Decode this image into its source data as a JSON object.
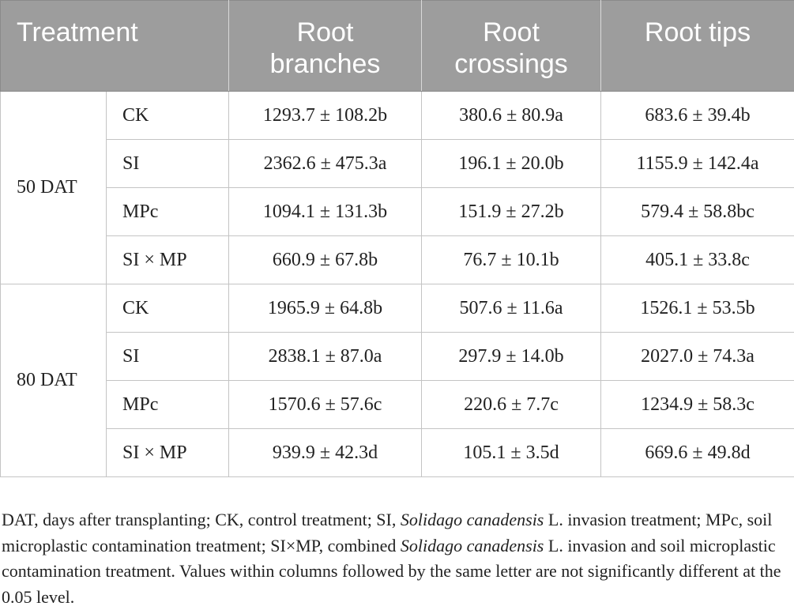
{
  "table": {
    "headers": {
      "treatment": "Treatment",
      "branches": [
        "Root",
        "branches"
      ],
      "crossings": [
        "Root",
        "crossings"
      ],
      "tips": [
        "Root tips"
      ]
    },
    "groups": [
      {
        "label": "50 DAT",
        "rows": [
          {
            "treatment": "CK",
            "branches": "1293.7 ± 108.2b",
            "crossings": "380.6 ± 80.9a",
            "tips": "683.6 ± 39.4b"
          },
          {
            "treatment": "SI",
            "branches": "2362.6 ± 475.3a",
            "crossings": "196.1 ± 20.0b",
            "tips": "1155.9 ± 142.4a"
          },
          {
            "treatment": "MPc",
            "branches": "1094.1 ± 131.3b",
            "crossings": "151.9 ± 27.2b",
            "tips": "579.4 ± 58.8bc"
          },
          {
            "treatment": "SI × MP",
            "branches": "660.9 ± 67.8b",
            "crossings": "76.7 ± 10.1b",
            "tips": "405.1 ± 33.8c"
          }
        ]
      },
      {
        "label": "80 DAT",
        "rows": [
          {
            "treatment": "CK",
            "branches": "1965.9 ± 64.8b",
            "crossings": "507.6 ± 11.6a",
            "tips": "1526.1 ± 53.5b"
          },
          {
            "treatment": "SI",
            "branches": "2838.1 ± 87.0a",
            "crossings": "297.9 ± 14.0b",
            "tips": "2027.0 ± 74.3a"
          },
          {
            "treatment": "MPc",
            "branches": "1570.6 ± 57.6c",
            "crossings": "220.6 ± 7.7c",
            "tips": "1234.9 ± 58.3c"
          },
          {
            "treatment": "SI × MP",
            "branches": "939.9 ± 42.3d",
            "crossings": "105.1 ± 3.5d",
            "tips": "669.6 ± 49.8d"
          }
        ]
      }
    ]
  },
  "footnote": {
    "part1": "DAT, days after transplanting; CK, control treatment; SI, ",
    "species1": "Solidago canadensis",
    "part2": " L. invasion treatment; MPc, soil microplastic contamination treatment; SI×MP, combined ",
    "species2": "Solidago canadensis",
    "part3": " L. invasion and soil microplastic contamination treatment. Values within columns followed by the same letter are not significantly different at the 0.05 level."
  },
  "colors": {
    "header_bg": "#9d9d9d",
    "header_text": "#ffffff",
    "grid_line": "#c4c4c4",
    "body_text": "#222222"
  }
}
